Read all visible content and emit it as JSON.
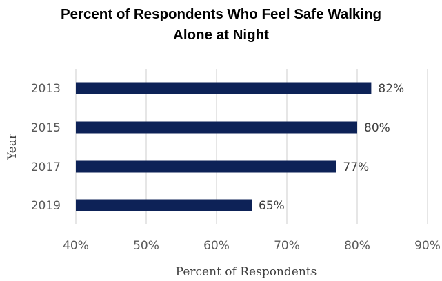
{
  "chart_data": {
    "type": "bar",
    "orientation": "horizontal",
    "title": "Percent of Respondents Who Feel Safe Walking Alone at Night",
    "title_lines": [
      "Percent of Respondents Who Feel Safe Walking",
      "Alone at Night"
    ],
    "xlabel": "Percent of Respondents",
    "ylabel": "Year",
    "categories": [
      "2013",
      "2015",
      "2017",
      "2019"
    ],
    "values": [
      82,
      80,
      77,
      65
    ],
    "data_labels": [
      "82%",
      "80%",
      "77%",
      "65%"
    ],
    "xlim": [
      40,
      90
    ],
    "x_ticks": [
      40,
      50,
      60,
      70,
      80,
      90
    ],
    "x_tick_labels": [
      "40%",
      "50%",
      "60%",
      "70%",
      "80%",
      "90%"
    ],
    "grid": "vertical",
    "bar_color": "#0d2257",
    "grid_color": "#d9d9d9"
  }
}
